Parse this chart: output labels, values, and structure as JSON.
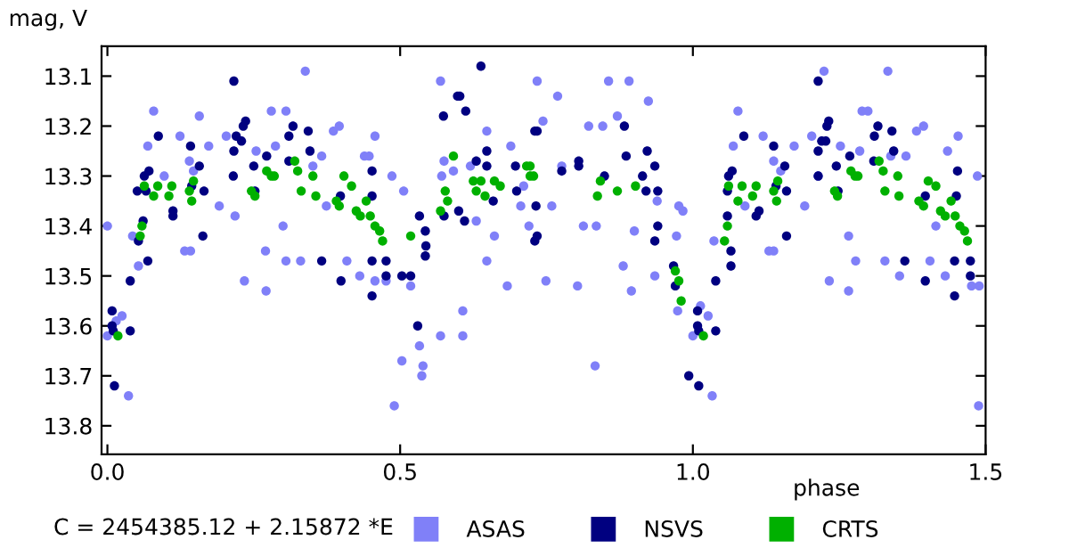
{
  "chart_data": {
    "type": "scatter",
    "xlabel": "phase",
    "ylabel": "mag, V",
    "annotations": [
      "C = 2454385.12 + 2.15872 *E"
    ],
    "xlim": [
      -0.01,
      1.5
    ],
    "xticks": [
      {
        "value": 0,
        "label": "0.0"
      },
      0.5,
      {
        "value": 1,
        "label": "1.0"
      },
      1.5
    ],
    "ylim": [
      13.857,
      13.04
    ],
    "yticks": [
      13.1,
      13.2,
      13.3,
      13.4,
      13.5,
      13.6,
      13.7,
      13.8
    ],
    "grid": false,
    "legend": "bottom",
    "marker": "circle",
    "series": [
      {
        "name": "ASAS",
        "color": "#8080f8",
        "x": [
          0,
          0,
          0.015,
          0.025,
          0.036,
          0.043,
          0.053,
          0.069,
          0.079,
          0.097,
          0.132,
          0.142,
          0.124,
          0.14,
          0.147,
          0.157,
          0.173,
          0.191,
          0.203,
          0.218,
          0.234,
          0.254,
          0.27,
          0.271,
          0.28,
          0.287,
          0.305,
          0.3,
          0.305,
          0.338,
          0.351,
          0.33,
          0.366,
          0.374,
          0.386,
          0.396,
          0.409,
          0.431,
          0.439,
          0.447,
          0.457,
          0.457,
          0.476,
          0.486,
          0.49,
          0.503,
          0.506,
          0.518,
          0.537,
          0.539,
          0.533,
          0.569,
          0.569,
          0.571,
          0.575,
          0.591,
          0.607,
          0.607,
          0.62,
          0.63,
          0.648,
          0.648,
          0.661,
          0.683,
          0.689,
          0.706,
          0.72,
          0.734,
          0.711,
          0.744,
          0.749,
          0.769,
          0.759,
          0.776,
          0.803,
          0.813,
          0.822,
          0.833,
          0.835,
          0.856,
          0.846,
          0.871,
          0.891,
          0.881,
          0.895,
          0.9,
          0.924,
          0.935,
          0.939,
          0.976,
          0.983,
          0.972,
          0.974,
          1.0,
          1.013,
          1.026,
          1.033,
          1.036,
          1.077,
          1.069,
          1.089,
          1.13,
          1.138,
          1.138,
          1.15,
          1.12,
          1.173,
          1.191,
          1.203,
          1.224,
          1.214,
          1.233,
          1.252,
          1.266,
          1.266,
          1.278,
          1.289,
          1.299,
          1.285,
          1.328,
          1.333,
          1.338,
          1.353,
          1.364,
          1.382,
          1.394,
          1.405,
          1.415,
          1.431,
          1.435,
          1.453,
          1.476,
          1.486,
          1.488,
          1.489
        ],
        "values": [
          13.4,
          13.62,
          13.59,
          13.58,
          13.74,
          13.42,
          13.48,
          13.24,
          13.17,
          13.3,
          13.45,
          13.45,
          13.22,
          13.27,
          13.29,
          13.18,
          13.24,
          13.36,
          13.22,
          13.38,
          13.51,
          13.25,
          13.45,
          13.53,
          13.17,
          13.24,
          13.17,
          13.4,
          13.47,
          13.09,
          13.28,
          13.47,
          13.26,
          13.36,
          13.21,
          13.2,
          13.47,
          13.5,
          13.26,
          13.26,
          13.22,
          13.51,
          13.51,
          13.3,
          13.76,
          13.67,
          13.33,
          13.52,
          13.7,
          13.68,
          13.64,
          13.11,
          13.62,
          13.3,
          13.27,
          13.29,
          13.57,
          13.62,
          13.28,
          13.39,
          13.21,
          13.47,
          13.42,
          13.52,
          13.24,
          13.36,
          13.4,
          13.11,
          13.32,
          13.19,
          13.51,
          13.14,
          13.36,
          13.28,
          13.52,
          13.4,
          13.2,
          13.68,
          13.4,
          13.11,
          13.2,
          13.18,
          13.11,
          13.48,
          13.53,
          13.41,
          13.15,
          13.5,
          13.35,
          13.36,
          13.37,
          13.42,
          13.57,
          13.62,
          13.56,
          13.58,
          13.74,
          13.43,
          13.17,
          13.24,
          13.36,
          13.45,
          13.45,
          13.27,
          13.29,
          13.22,
          13.24,
          13.36,
          13.22,
          13.09,
          13.3,
          13.51,
          13.24,
          13.53,
          13.42,
          13.47,
          13.17,
          13.17,
          13.25,
          13.47,
          13.09,
          13.26,
          13.5,
          13.26,
          13.21,
          13.2,
          13.47,
          13.4,
          13.5,
          13.25,
          13.22,
          13.52,
          13.3,
          13.76,
          13.52
        ]
      },
      {
        "name": "NSVS",
        "color": "#000080",
        "x": [
          0.008,
          0.008,
          0.01,
          0.012,
          0.039,
          0.039,
          0.051,
          0.053,
          0.061,
          0.063,
          0.066,
          0.069,
          0.071,
          0.087,
          0.112,
          0.112,
          0.142,
          0.144,
          0.157,
          0.163,
          0.165,
          0.216,
          0.216,
          0.215,
          0.22,
          0.229,
          0.232,
          0.236,
          0.25,
          0.252,
          0.272,
          0.31,
          0.31,
          0.317,
          0.343,
          0.346,
          0.366,
          0.399,
          0.398,
          0.452,
          0.452,
          0.452,
          0.452,
          0.476,
          0.476,
          0.503,
          0.518,
          0.53,
          0.543,
          0.544,
          0.533,
          0.543,
          0.574,
          0.575,
          0.598,
          0.602,
          0.6,
          0.61,
          0.612,
          0.63,
          0.638,
          0.648,
          0.659,
          0.648,
          0.697,
          0.699,
          0.73,
          0.73,
          0.734,
          0.732,
          0.776,
          0.734,
          0.805,
          0.805,
          0.849,
          0.883,
          0.886,
          0.92,
          0.922,
          0.914,
          0.935,
          0.94,
          0.94,
          0.935,
          0.967,
          0.97,
          1.008,
          1.008,
          1.01,
          1.01,
          0.993,
          1.039,
          1.039,
          1.065,
          1.065,
          1.059,
          1.061,
          1.059,
          1.067,
          1.087,
          1.108,
          1.113,
          1.138,
          1.142,
          1.157,
          1.16,
          1.16,
          1.214,
          1.214,
          1.214,
          1.22,
          1.227,
          1.229,
          1.232,
          1.245,
          1.248,
          1.268,
          1.309,
          1.31,
          1.316,
          1.34,
          1.343,
          1.362,
          1.397,
          1.397,
          1.452,
          1.45,
          1.447,
          1.447,
          1.474,
          1.474
        ],
        "values": [
          13.57,
          13.6,
          13.61,
          13.72,
          13.61,
          13.51,
          13.33,
          13.43,
          13.39,
          13.3,
          13.33,
          13.47,
          13.29,
          13.22,
          13.37,
          13.38,
          13.24,
          13.32,
          13.28,
          13.42,
          13.33,
          13.11,
          13.25,
          13.3,
          13.22,
          13.23,
          13.2,
          13.19,
          13.28,
          13.33,
          13.26,
          13.27,
          13.22,
          13.2,
          13.21,
          13.25,
          13.47,
          13.51,
          13.34,
          13.29,
          13.34,
          13.47,
          13.54,
          13.47,
          13.5,
          13.5,
          13.5,
          13.6,
          13.46,
          13.44,
          13.38,
          13.41,
          13.18,
          13.38,
          13.14,
          13.14,
          13.37,
          13.39,
          13.17,
          13.27,
          13.08,
          13.25,
          13.35,
          13.28,
          13.28,
          13.33,
          13.21,
          13.43,
          13.21,
          13.36,
          13.29,
          13.42,
          13.27,
          13.28,
          13.3,
          13.2,
          13.26,
          13.33,
          13.25,
          13.3,
          13.28,
          13.33,
          13.4,
          13.43,
          13.48,
          13.52,
          13.57,
          13.6,
          13.61,
          13.72,
          13.7,
          13.51,
          13.61,
          13.48,
          13.45,
          13.38,
          13.3,
          13.33,
          13.29,
          13.22,
          13.38,
          13.37,
          13.24,
          13.32,
          13.28,
          13.42,
          13.33,
          13.11,
          13.25,
          13.3,
          13.23,
          13.23,
          13.2,
          13.19,
          13.28,
          13.33,
          13.26,
          13.27,
          13.22,
          13.2,
          13.21,
          13.25,
          13.47,
          13.51,
          13.34,
          13.29,
          13.34,
          13.47,
          13.54,
          13.47,
          13.5
        ]
      },
      {
        "name": "CRTS",
        "color": "#00b000",
        "x": [
          0.018,
          0.056,
          0.059,
          0.063,
          0.079,
          0.086,
          0.105,
          0.11,
          0.14,
          0.144,
          0.147,
          0.246,
          0.252,
          0.272,
          0.28,
          0.285,
          0.32,
          0.325,
          0.331,
          0.351,
          0.356,
          0.391,
          0.396,
          0.404,
          0.417,
          0.425,
          0.432,
          0.442,
          0.449,
          0.457,
          0.465,
          0.47,
          0.518,
          0.569,
          0.577,
          0.581,
          0.591,
          0.625,
          0.63,
          0.638,
          0.645,
          0.661,
          0.671,
          0.716,
          0.722,
          0.722,
          0.728,
          0.837,
          0.842,
          0.871,
          0.902,
          0.97,
          0.976,
          0.98,
          1.018,
          1.054,
          1.059,
          1.061,
          1.077,
          1.084,
          1.102,
          1.108,
          1.138,
          1.143,
          1.145,
          1.242,
          1.247,
          1.27,
          1.277,
          1.282,
          1.318,
          1.325,
          1.328,
          1.35,
          1.352,
          1.386,
          1.394,
          1.402,
          1.415,
          1.423,
          1.431,
          1.441,
          1.448,
          1.456,
          1.464,
          1.469
        ],
        "values": [
          13.62,
          13.42,
          13.4,
          13.32,
          13.34,
          13.32,
          13.34,
          13.32,
          13.33,
          13.35,
          13.31,
          13.33,
          13.34,
          13.29,
          13.3,
          13.3,
          13.27,
          13.29,
          13.33,
          13.3,
          13.34,
          13.35,
          13.36,
          13.3,
          13.32,
          13.37,
          13.38,
          13.35,
          13.38,
          13.4,
          13.41,
          13.43,
          13.42,
          13.37,
          13.33,
          13.35,
          13.26,
          13.31,
          13.33,
          13.31,
          13.34,
          13.31,
          13.32,
          13.28,
          13.3,
          13.28,
          13.3,
          13.34,
          13.31,
          13.33,
          13.32,
          13.49,
          13.51,
          13.55,
          13.62,
          13.43,
          13.4,
          13.32,
          13.35,
          13.32,
          13.34,
          13.32,
          13.33,
          13.35,
          13.31,
          13.33,
          13.34,
          13.29,
          13.3,
          13.3,
          13.27,
          13.29,
          13.33,
          13.3,
          13.34,
          13.35,
          13.36,
          13.31,
          13.32,
          13.37,
          13.38,
          13.35,
          13.38,
          13.4,
          13.41,
          13.43
        ]
      }
    ]
  }
}
